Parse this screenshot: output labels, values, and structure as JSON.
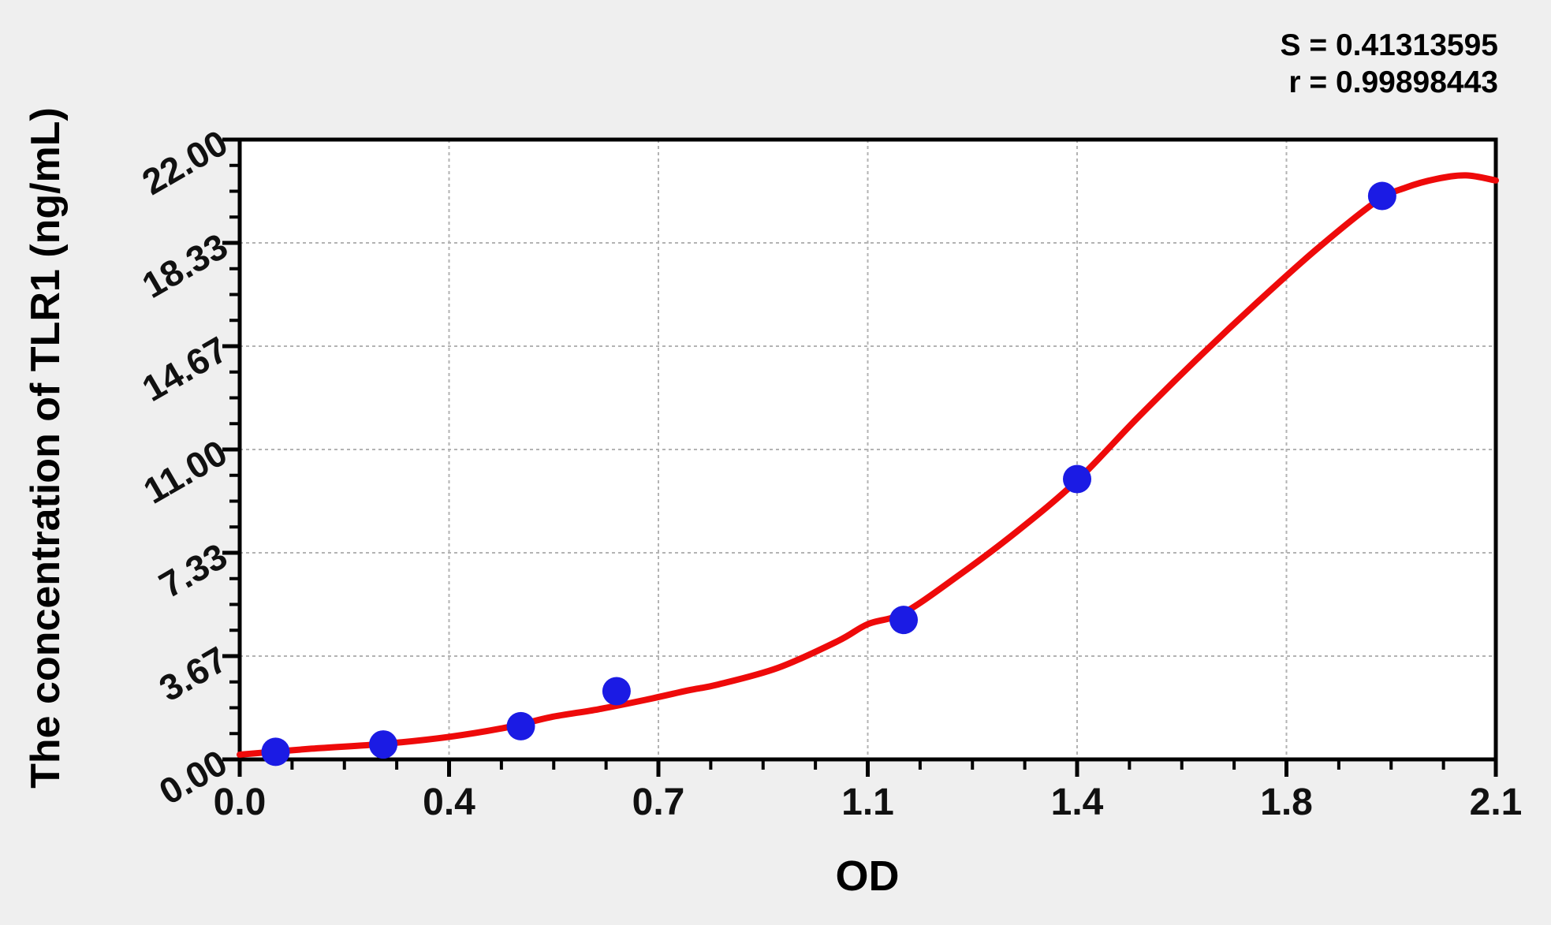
{
  "chart_data": {
    "type": "scatter",
    "title": "",
    "xlabel": "OD",
    "ylabel": "The concentration of TLR1 (ng/mL)",
    "annotations": {
      "s": "S = 0.41313595",
      "r": "r = 0.99898443"
    },
    "xlim": [
      0,
      2.1
    ],
    "ylim": [
      0,
      22
    ],
    "x_major_ticks": [
      0,
      0.35,
      0.7,
      1.05,
      1.4,
      1.75,
      2.1
    ],
    "x_tick_labels": [
      "0.0",
      "0.4",
      "0.7",
      "1.1",
      "1.4",
      "1.8",
      "2.1"
    ],
    "y_major_ticks": [
      0,
      3.6667,
      7.3333,
      11,
      14.6667,
      18.3333,
      22
    ],
    "y_tick_labels": [
      "0.00",
      "3.67",
      "7.33",
      "11.00",
      "14.67",
      "18.33",
      "22.00"
    ],
    "minor_divisions_per_major": 4,
    "grid": "dashed gridlines at major ticks",
    "legend_position": "none",
    "series": [
      {
        "name": "standard-points",
        "kind": "scatter",
        "color": "#1b1be4",
        "points": [
          [
            0.06,
            0.27
          ],
          [
            0.24,
            0.53
          ],
          [
            0.47,
            1.18
          ],
          [
            0.63,
            2.42
          ],
          [
            1.11,
            4.95
          ],
          [
            1.4,
            9.95
          ],
          [
            1.91,
            20.0
          ]
        ]
      },
      {
        "name": "fit-curve",
        "kind": "line",
        "color": "#ee0a0a",
        "points": [
          [
            0.0,
            0.17
          ],
          [
            0.12,
            0.38
          ],
          [
            0.24,
            0.55
          ],
          [
            0.35,
            0.8
          ],
          [
            0.45,
            1.15
          ],
          [
            0.52,
            1.5
          ],
          [
            0.6,
            1.78
          ],
          [
            0.68,
            2.12
          ],
          [
            0.75,
            2.45
          ],
          [
            0.8,
            2.66
          ],
          [
            0.9,
            3.25
          ],
          [
            1.0,
            4.2
          ],
          [
            1.05,
            4.8
          ],
          [
            1.11,
            5.2
          ],
          [
            1.2,
            6.5
          ],
          [
            1.3,
            8.1
          ],
          [
            1.4,
            9.9
          ],
          [
            1.5,
            12.1
          ],
          [
            1.6,
            14.2
          ],
          [
            1.7,
            16.2
          ],
          [
            1.8,
            18.1
          ],
          [
            1.9,
            19.8
          ],
          [
            1.95,
            20.3
          ],
          [
            2.0,
            20.6
          ],
          [
            2.05,
            20.73
          ],
          [
            2.1,
            20.55
          ]
        ]
      }
    ],
    "colors": {
      "figure_background": "#efefef",
      "plot_background": "#ffffff",
      "axis": "#000000",
      "grid": "#b3b3b3",
      "point": "#1b1be4",
      "curve": "#ee0a0a",
      "text": "#000000"
    }
  }
}
